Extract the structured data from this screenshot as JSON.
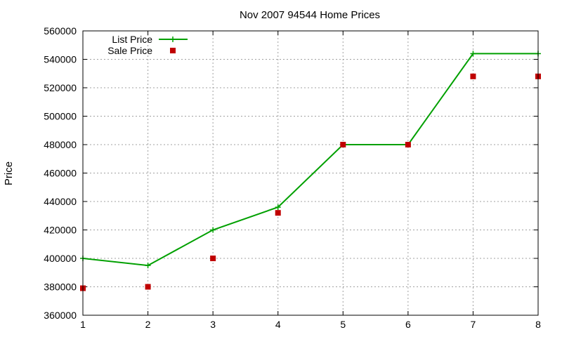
{
  "chart_data": {
    "type": "line",
    "title": "Nov 2007 94544 Home Prices",
    "xlabel": "",
    "ylabel": "Price",
    "x": [
      1,
      2,
      3,
      4,
      5,
      6,
      7,
      8
    ],
    "xlim": [
      1,
      8
    ],
    "ylim": [
      360000,
      560000
    ],
    "xticks": [
      1,
      2,
      3,
      4,
      5,
      6,
      7,
      8
    ],
    "yticks": [
      360000,
      380000,
      400000,
      420000,
      440000,
      460000,
      480000,
      500000,
      520000,
      540000,
      560000
    ],
    "grid": true,
    "legend_position": "top-left",
    "series": [
      {
        "name": "List Price",
        "style": "lines+points",
        "marker": "plus",
        "color": "#00a000",
        "values": [
          400000,
          395000,
          420000,
          436000,
          480000,
          480000,
          544000,
          544000
        ]
      },
      {
        "name": "Sale Price",
        "style": "points",
        "marker": "square",
        "color": "#c00000",
        "values": [
          379000,
          380000,
          400000,
          432000,
          480000,
          480000,
          528000,
          528000
        ]
      }
    ]
  }
}
